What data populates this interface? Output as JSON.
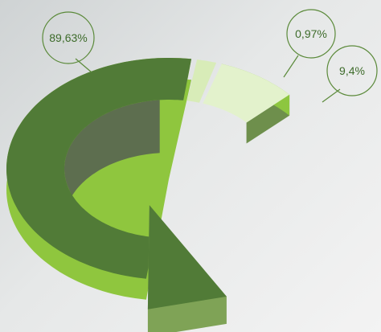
{
  "chart_data": {
    "type": "pie",
    "variant": "3d-ring-arrow",
    "values": [
      89.63,
      0.97,
      9.4
    ],
    "labels": [
      "89,63%",
      "0,97%",
      "9,4%"
    ],
    "colors": {
      "main_top": "#517b37",
      "main_side": "#8fc63e",
      "inner_wall": "#5d6e4f",
      "inner_wall_light": "#6b7c5c",
      "small_top": "#d8ecb8",
      "third_top": "#e3f2cc",
      "third_side": "#8dc63f",
      "third_front": "#6e8f4c",
      "arrow_face": "#7fa356",
      "callout_stroke": "#5b8a3a",
      "callout_text": "#3d6b2a"
    }
  }
}
